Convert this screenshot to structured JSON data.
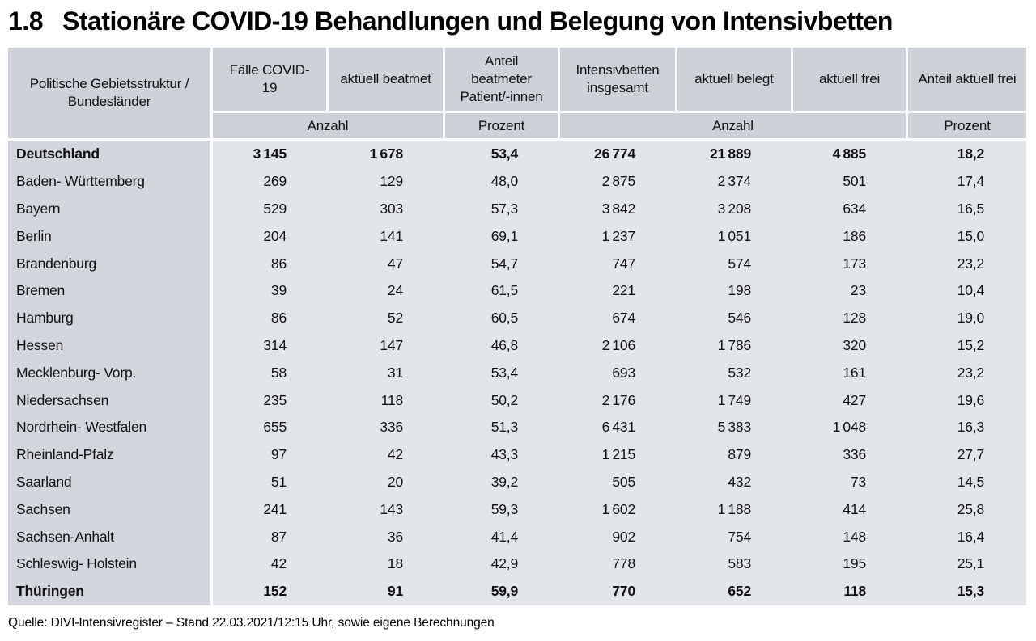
{
  "title": {
    "number": "1.8",
    "text": "Stationäre COVID-19 Behandlungen und Belegung von Intensivbetten"
  },
  "colors": {
    "header_bg": "#cdd1d8",
    "row_label_bg": "#d3d7dd",
    "body_bg": "#e2e5ea",
    "gap": "#ffffff",
    "text": "#111111"
  },
  "table": {
    "col_headers": [
      "Politische Gebietsstruktur / Bundesländer",
      "Fälle COVID-19",
      "aktuell beatmet",
      "Anteil beatmeter Patient/-innen",
      "Intensivbetten insgesamt",
      "aktuell belegt",
      "aktuell frei",
      "Anteil aktuell frei"
    ],
    "units": {
      "anzahl_a": "Anzahl",
      "prozent_a": "Prozent",
      "anzahl_b": "Anzahl",
      "prozent_b": "Prozent"
    },
    "rows": [
      {
        "name": "Deutschland",
        "bold": true,
        "values": [
          "3 145",
          "1 678",
          "53,4",
          "26 774",
          "21 889",
          "4 885",
          "18,2"
        ]
      },
      {
        "name": "Baden- Württemberg",
        "bold": false,
        "values": [
          "269",
          "129",
          "48,0",
          "2 875",
          "2 374",
          "501",
          "17,4"
        ]
      },
      {
        "name": "Bayern",
        "bold": false,
        "values": [
          "529",
          "303",
          "57,3",
          "3 842",
          "3 208",
          "634",
          "16,5"
        ]
      },
      {
        "name": "Berlin",
        "bold": false,
        "values": [
          "204",
          "141",
          "69,1",
          "1 237",
          "1 051",
          "186",
          "15,0"
        ]
      },
      {
        "name": "Brandenburg",
        "bold": false,
        "values": [
          "86",
          "47",
          "54,7",
          "747",
          "574",
          "173",
          "23,2"
        ]
      },
      {
        "name": "Bremen",
        "bold": false,
        "values": [
          "39",
          "24",
          "61,5",
          "221",
          "198",
          "23",
          "10,4"
        ]
      },
      {
        "name": "Hamburg",
        "bold": false,
        "values": [
          "86",
          "52",
          "60,5",
          "674",
          "546",
          "128",
          "19,0"
        ]
      },
      {
        "name": "Hessen",
        "bold": false,
        "values": [
          "314",
          "147",
          "46,8",
          "2 106",
          "1 786",
          "320",
          "15,2"
        ]
      },
      {
        "name": "Mecklenburg- Vorp.",
        "bold": false,
        "values": [
          "58",
          "31",
          "53,4",
          "693",
          "532",
          "161",
          "23,2"
        ]
      },
      {
        "name": "Niedersachsen",
        "bold": false,
        "values": [
          "235",
          "118",
          "50,2",
          "2 176",
          "1 749",
          "427",
          "19,6"
        ]
      },
      {
        "name": "Nordrhein- Westfalen",
        "bold": false,
        "values": [
          "655",
          "336",
          "51,3",
          "6 431",
          "5 383",
          "1 048",
          "16,3"
        ]
      },
      {
        "name": "Rheinland-Pfalz",
        "bold": false,
        "values": [
          "97",
          "42",
          "43,3",
          "1 215",
          "879",
          "336",
          "27,7"
        ]
      },
      {
        "name": "Saarland",
        "bold": false,
        "values": [
          "51",
          "20",
          "39,2",
          "505",
          "432",
          "73",
          "14,5"
        ]
      },
      {
        "name": "Sachsen",
        "bold": false,
        "values": [
          "241",
          "143",
          "59,3",
          "1 602",
          "1 188",
          "414",
          "25,8"
        ]
      },
      {
        "name": "Sachsen-Anhalt",
        "bold": false,
        "values": [
          "87",
          "36",
          "41,4",
          "902",
          "754",
          "148",
          "16,4"
        ]
      },
      {
        "name": "Schleswig- Holstein",
        "bold": false,
        "values": [
          "42",
          "18",
          "42,9",
          "778",
          "583",
          "195",
          "25,1"
        ]
      },
      {
        "name": "Thüringen",
        "bold": true,
        "values": [
          "152",
          "91",
          "59,9",
          "770",
          "652",
          "118",
          "15,3"
        ]
      }
    ]
  },
  "footer": {
    "source": "Quelle: DIVI-Intensivregister – Stand 22.03.2021/12:15 Uhr, sowie eigene Berechnungen"
  }
}
